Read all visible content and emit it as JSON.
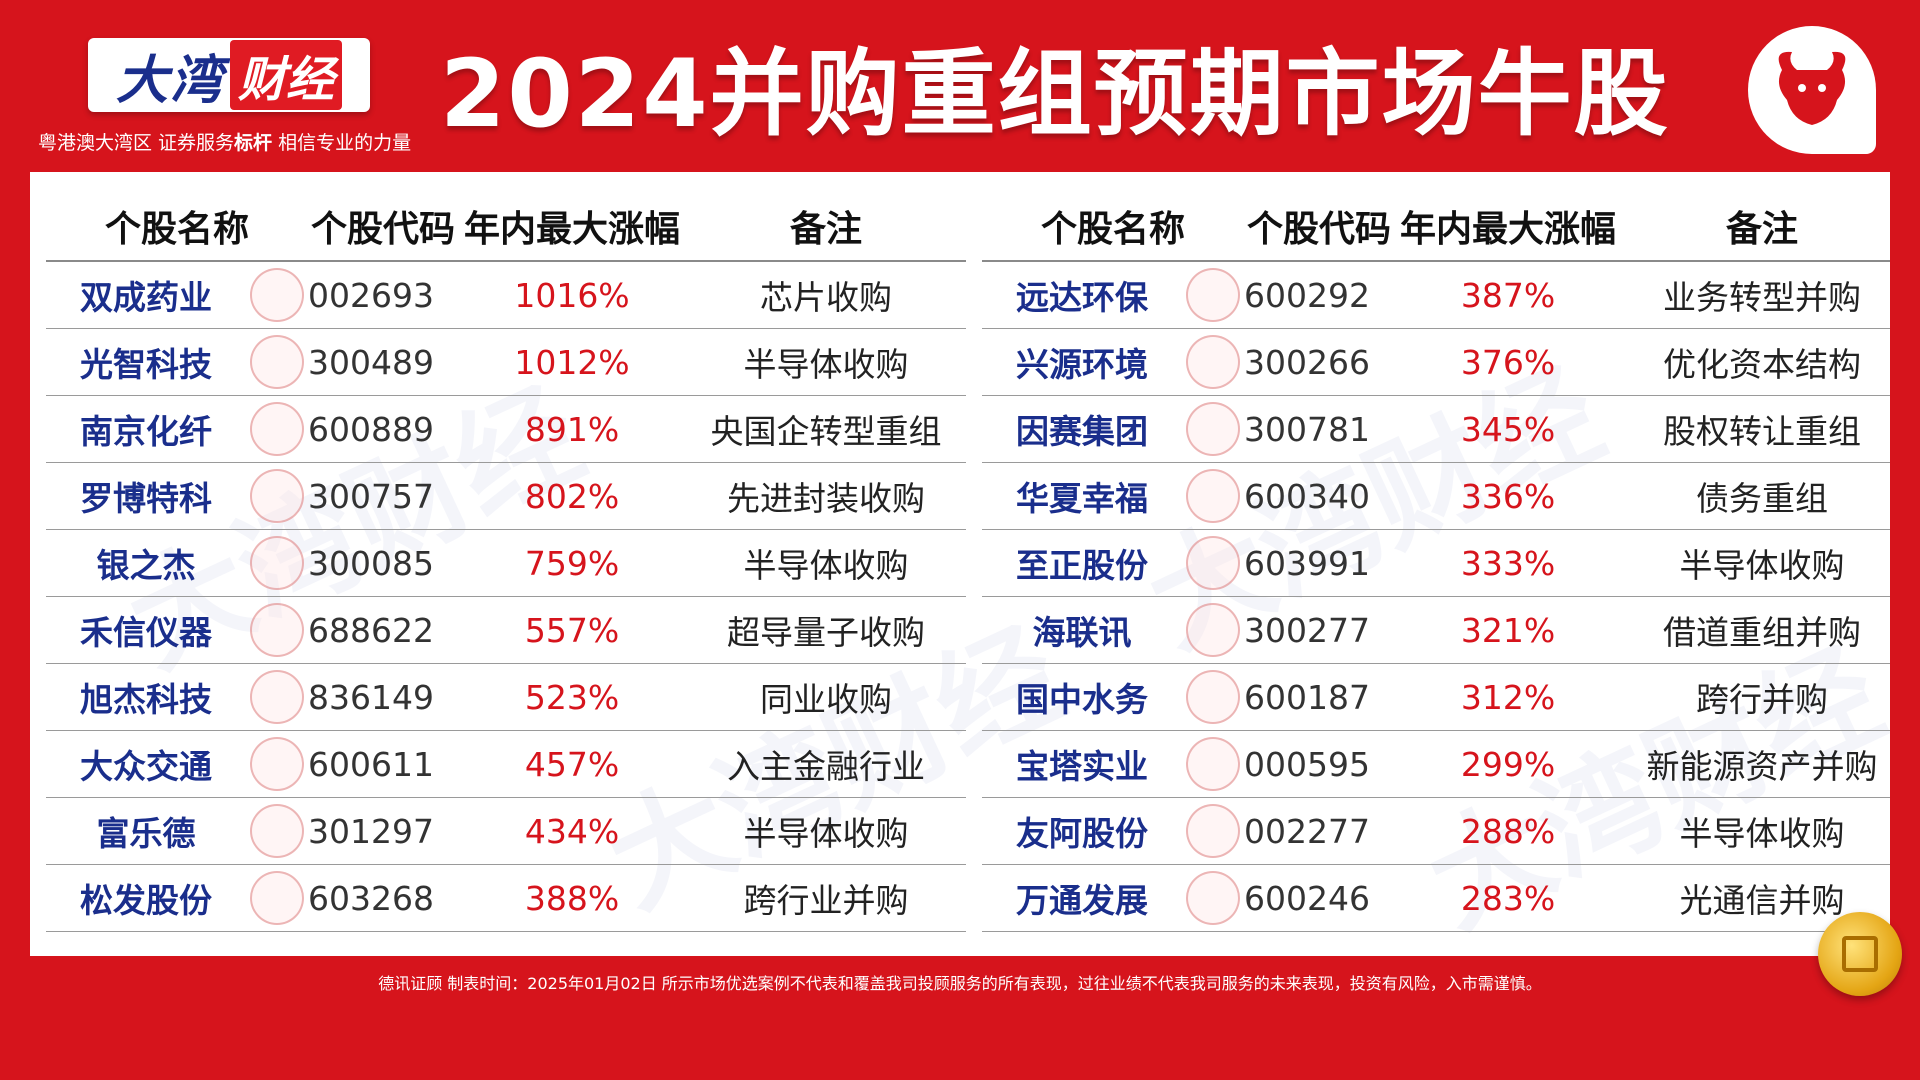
{
  "brand": {
    "name_a": "大湾",
    "name_b": "财经",
    "slogan_pre": "粤港澳大湾区 证券服务",
    "slogan_bold": "标杆",
    "slogan_post": " 相信专业的力量"
  },
  "title": "2024并购重组预期市场牛股",
  "columns": {
    "name": "个股名称",
    "code": "个股代码",
    "max_gain": "年内最大涨幅",
    "note": "备注"
  },
  "left_table": [
    {
      "name": "双成药业",
      "code": "002693",
      "max_gain": "1016%",
      "note": "芯片收购"
    },
    {
      "name": "光智科技",
      "code": "300489",
      "max_gain": "1012%",
      "note": "半导体收购"
    },
    {
      "name": "南京化纤",
      "code": "600889",
      "max_gain": "891%",
      "note": "央国企转型重组"
    },
    {
      "name": "罗博特科",
      "code": "300757",
      "max_gain": "802%",
      "note": "先进封装收购"
    },
    {
      "name": "银之杰",
      "code": "300085",
      "max_gain": "759%",
      "note": "半导体收购"
    },
    {
      "name": "禾信仪器",
      "code": "688622",
      "max_gain": "557%",
      "note": "超导量子收购"
    },
    {
      "name": "旭杰科技",
      "code": "836149",
      "max_gain": "523%",
      "note": "同业收购"
    },
    {
      "name": "大众交通",
      "code": "600611",
      "max_gain": "457%",
      "note": "入主金融行业"
    },
    {
      "name": "富乐德",
      "code": "301297",
      "max_gain": "434%",
      "note": "半导体收购"
    },
    {
      "name": "松发股份",
      "code": "603268",
      "max_gain": "388%",
      "note": "跨行业并购"
    }
  ],
  "right_table": [
    {
      "name": "远达环保",
      "code": "600292",
      "max_gain": "387%",
      "note": "业务转型并购"
    },
    {
      "name": "兴源环境",
      "code": "300266",
      "max_gain": "376%",
      "note": "优化资本结构"
    },
    {
      "name": "因赛集团",
      "code": "300781",
      "max_gain": "345%",
      "note": "股权转让重组"
    },
    {
      "name": "华夏幸福",
      "code": "600340",
      "max_gain": "336%",
      "note": "债务重组"
    },
    {
      "name": "至正股份",
      "code": "603991",
      "max_gain": "333%",
      "note": "半导体收购"
    },
    {
      "name": "海联讯",
      "code": "300277",
      "max_gain": "321%",
      "note": "借道重组并购"
    },
    {
      "name": "国中水务",
      "code": "600187",
      "max_gain": "312%",
      "note": "跨行并购"
    },
    {
      "name": "宝塔实业",
      "code": "000595",
      "max_gain": "299%",
      "note": "新能源资产并购"
    },
    {
      "name": "友阿股份",
      "code": "002277",
      "max_gain": "288%",
      "note": "半导体收购"
    },
    {
      "name": "万通发展",
      "code": "600246",
      "max_gain": "283%",
      "note": "光通信并购"
    }
  ],
  "footer": "德讯证顾  制表时间：2025年01月02日  所示市场优选案例不代表和覆盖我司投顾服务的所有表现，过往业绩不代表我司服务的未来表现，投资有风险，入市需谨慎。",
  "colors": {
    "background": "#d6141c",
    "brand_blue": "#1a2e8c",
    "gain_red": "#d6141c"
  },
  "icons": {
    "bull": "bull-icon",
    "coin": "gold-coin-icon",
    "seal": "brand-seal-icon"
  }
}
